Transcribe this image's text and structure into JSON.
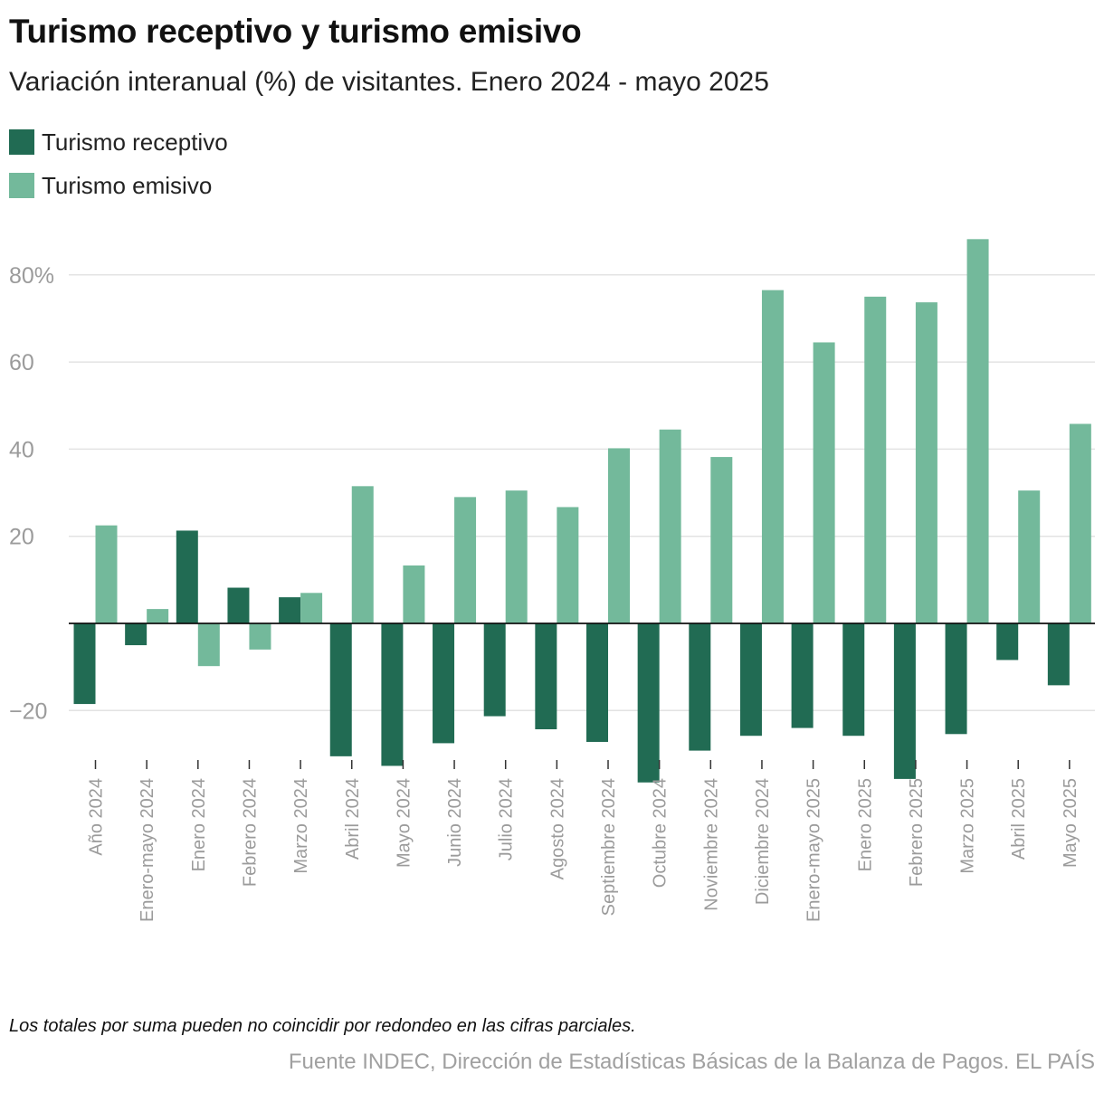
{
  "header": {
    "title": "Turismo receptivo y turismo emisivo",
    "subtitle": "Variación interanual (%) de visitantes. Enero 2024 - mayo 2025"
  },
  "colors": {
    "receptivo": "#216b53",
    "emisivo": "#73b99b",
    "grid": "#e3e3e3",
    "axis": "#111111",
    "tick_text": "#9b9b9b"
  },
  "chart_data": {
    "type": "bar",
    "title": "Turismo receptivo y turismo emisivo",
    "subtitle": "Variación interanual (%) de visitantes. Enero 2024 - mayo 2025",
    "xlabel": "",
    "ylabel": "",
    "ylim": [
      -37,
      91
    ],
    "yticks": [
      80,
      60,
      40,
      20,
      -20
    ],
    "ytick_labels": [
      "80%",
      "60",
      "40",
      "20",
      "−20"
    ],
    "grid": true,
    "legend": "top-left",
    "categories": [
      "Año 2024",
      "Enero-mayo 2024",
      "Enero 2024",
      "Febrero 2024",
      "Marzo 2024",
      "Abril 2024",
      "Mayo 2024",
      "Junio 2024",
      "Julio 2024",
      "Agosto 2024",
      "Septiembre 2024",
      "Octubre 2024",
      "Noviembre 2024",
      "Diciembre 2024",
      "Enero-mayo 2025",
      "Enero 2025",
      "Febrero 2025",
      "Marzo 2025",
      "Abril 2025",
      "Mayo 2025"
    ],
    "series": [
      {
        "name": "Turismo receptivo",
        "values": [
          -18.5,
          -5,
          21.3,
          8.2,
          6,
          -30.5,
          -32.7,
          -27.5,
          -21.3,
          -24.3,
          -27.2,
          -36.5,
          -29.2,
          -25.8,
          -24,
          -25.8,
          -35.7,
          -25.4,
          -8.4,
          -14.2
        ]
      },
      {
        "name": "Turismo emisivo",
        "values": [
          22.5,
          3.3,
          -9.8,
          -6,
          7,
          31.5,
          13.3,
          29,
          30.5,
          26.7,
          40.2,
          44.5,
          38.2,
          76.5,
          64.5,
          75,
          73.7,
          88.2,
          30.5,
          45.8
        ]
      }
    ]
  },
  "footer": {
    "note": "Los totales por suma pueden no coincidir por redondeo en las cifras parciales.",
    "source": "Fuente INDEC, Dirección de Estadísticas Básicas de la Balanza de Pagos. EL PAÍS"
  }
}
